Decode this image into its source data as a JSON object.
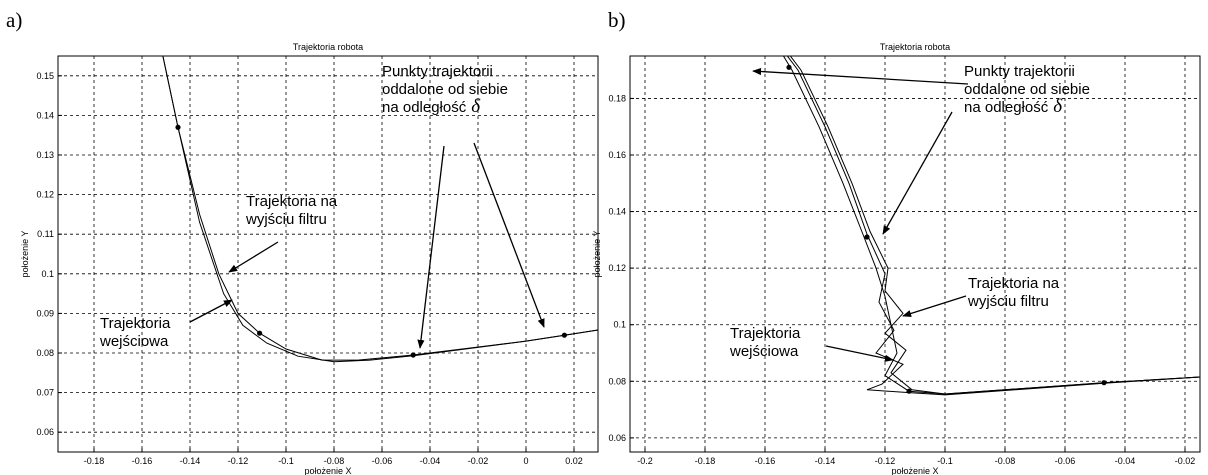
{
  "panels": [
    {
      "label": "a)",
      "annotations": [
        {
          "lines": [
            "Punkty trajektorii",
            "oddalone od siebie",
            "na odległość"
          ],
          "symbol": "δ"
        },
        {
          "lines": [
            "Trajektoria na",
            "wyjściu filtru"
          ]
        },
        {
          "lines": [
            "Trajektoria",
            "wejściowa"
          ]
        }
      ]
    },
    {
      "label": "b)",
      "annotations": [
        {
          "lines": [
            "Punkty trajektorii",
            "oddalone od siebie",
            "na odległość"
          ],
          "symbol": "δ"
        },
        {
          "lines": [
            "Trajektoria na",
            "wyjściu filtru"
          ]
        },
        {
          "lines": [
            "Trajektoria",
            "wejściowa"
          ]
        }
      ]
    }
  ],
  "chart_data": [
    {
      "type": "line",
      "title": "Trajektoria robota",
      "xlabel": "położenie X",
      "ylabel": "położenie Y",
      "xlim": [
        -0.195,
        0.03
      ],
      "ylim": [
        0.055,
        0.155
      ],
      "xticks": [
        -0.18,
        -0.16,
        -0.14,
        -0.12,
        -0.1,
        -0.08,
        -0.06,
        -0.04,
        -0.02,
        0,
        0.02
      ],
      "xtick_labels": [
        "-0.18",
        "-0.16",
        "-0.14",
        "-0.12",
        "-0.1",
        "-0.08",
        "-0.06",
        "-0.04",
        "-0.02",
        "0",
        "0.02"
      ],
      "yticks": [
        0.06,
        0.07,
        0.08,
        0.09,
        0.1,
        0.11,
        0.12,
        0.13,
        0.14,
        0.15
      ],
      "ytick_labels": [
        "0.06",
        "0.07",
        "0.08",
        "0.09",
        "0.1",
        "0.11",
        "0.12",
        "0.13",
        "0.14",
        "0.15"
      ],
      "grid": true,
      "series": [
        {
          "points": [
            [
              -0.152,
              0.157
            ],
            [
              -0.145,
              0.137
            ],
            [
              -0.136,
              0.115
            ],
            [
              -0.128,
              0.1
            ],
            [
              -0.12,
              0.09
            ],
            [
              -0.111,
              0.085
            ],
            [
              -0.1,
              0.081
            ],
            [
              -0.085,
              0.0782
            ],
            [
              -0.07,
              0.0782
            ],
            [
              -0.047,
              0.0795
            ],
            [
              0.0,
              0.083
            ],
            [
              0.016,
              0.0845
            ],
            [
              0.03,
              0.0858
            ]
          ]
        },
        {
          "points": [
            [
              -0.152,
              0.157
            ],
            [
              -0.145,
              0.137
            ],
            [
              -0.136,
              0.113
            ],
            [
              -0.126,
              0.095
            ],
            [
              -0.118,
              0.087
            ],
            [
              -0.108,
              0.0825
            ],
            [
              -0.095,
              0.0792
            ],
            [
              -0.08,
              0.0778
            ],
            [
              -0.065,
              0.0782
            ],
            [
              -0.047,
              0.0793
            ],
            [
              0.0,
              0.083
            ],
            [
              0.016,
              0.0845
            ],
            [
              0.03,
              0.0858
            ]
          ]
        }
      ],
      "markers": [
        [
          -0.145,
          0.137
        ],
        [
          -0.111,
          0.085
        ],
        [
          -0.047,
          0.0795
        ],
        [
          0.016,
          0.0845
        ]
      ]
    },
    {
      "type": "line",
      "title": "Trajektoria robota",
      "xlabel": "położenie X",
      "ylabel": "położenie Y",
      "xlim": [
        -0.205,
        -0.015
      ],
      "ylim": [
        0.055,
        0.195
      ],
      "xticks": [
        -0.2,
        -0.18,
        -0.16,
        -0.14,
        -0.12,
        -0.1,
        -0.08,
        -0.06,
        -0.04,
        -0.02
      ],
      "xtick_labels": [
        "-0.2",
        "-0.18",
        "-0.16",
        "-0.14",
        "-0.12",
        "-0.1",
        "-0.08",
        "-0.06",
        "-0.04",
        "-0.02"
      ],
      "yticks": [
        0.06,
        0.08,
        0.1,
        0.12,
        0.14,
        0.16,
        0.18
      ],
      "ytick_labels": [
        "0.06",
        "0.08",
        "0.1",
        "0.12",
        "0.14",
        "0.16",
        "0.18"
      ],
      "grid": true,
      "series": [
        {
          "points": [
            [
              -0.155,
              0.197
            ],
            [
              -0.151,
              0.19
            ],
            [
              -0.142,
              0.17
            ],
            [
              -0.134,
              0.15
            ],
            [
              -0.127,
              0.131
            ],
            [
              -0.123,
              0.12
            ],
            [
              -0.12,
              0.11
            ],
            [
              -0.118,
              0.1
            ],
            [
              -0.116,
              0.09
            ],
            [
              -0.12,
              0.082
            ],
            [
              -0.112,
              0.0765
            ],
            [
              -0.1,
              0.0755
            ],
            [
              -0.047,
              0.0795
            ],
            [
              -0.015,
              0.0815
            ]
          ]
        },
        {
          "points": [
            [
              -0.154,
              0.197
            ],
            [
              -0.149,
              0.19
            ],
            [
              -0.14,
              0.17
            ],
            [
              -0.132,
              0.15
            ],
            [
              -0.126,
              0.132
            ],
            [
              -0.12,
              0.118
            ],
            [
              -0.122,
              0.108
            ],
            [
              -0.117,
              0.098
            ],
            [
              -0.123,
              0.09
            ],
            [
              -0.114,
              0.086
            ],
            [
              -0.121,
              0.079
            ],
            [
              -0.126,
              0.077
            ],
            [
              -0.112,
              0.076
            ],
            [
              -0.1,
              0.0752
            ],
            [
              -0.047,
              0.0793
            ],
            [
              -0.015,
              0.0815
            ]
          ]
        },
        {
          "points": [
            [
              -0.153,
              0.197
            ],
            [
              -0.148,
              0.19
            ],
            [
              -0.139,
              0.17
            ],
            [
              -0.131,
              0.15
            ],
            [
              -0.125,
              0.133
            ],
            [
              -0.119,
              0.12
            ],
            [
              -0.12,
              0.112
            ],
            [
              -0.114,
              0.104
            ],
            [
              -0.12,
              0.097
            ],
            [
              -0.113,
              0.091
            ],
            [
              -0.118,
              0.083
            ],
            [
              -0.111,
              0.077
            ],
            [
              -0.1,
              0.0755
            ],
            [
              -0.047,
              0.0795
            ],
            [
              -0.015,
              0.0815
            ]
          ]
        }
      ],
      "markers": [
        [
          -0.152,
          0.191
        ],
        [
          -0.126,
          0.131
        ],
        [
          -0.112,
          0.0765
        ],
        [
          -0.047,
          0.0795
        ]
      ]
    }
  ]
}
